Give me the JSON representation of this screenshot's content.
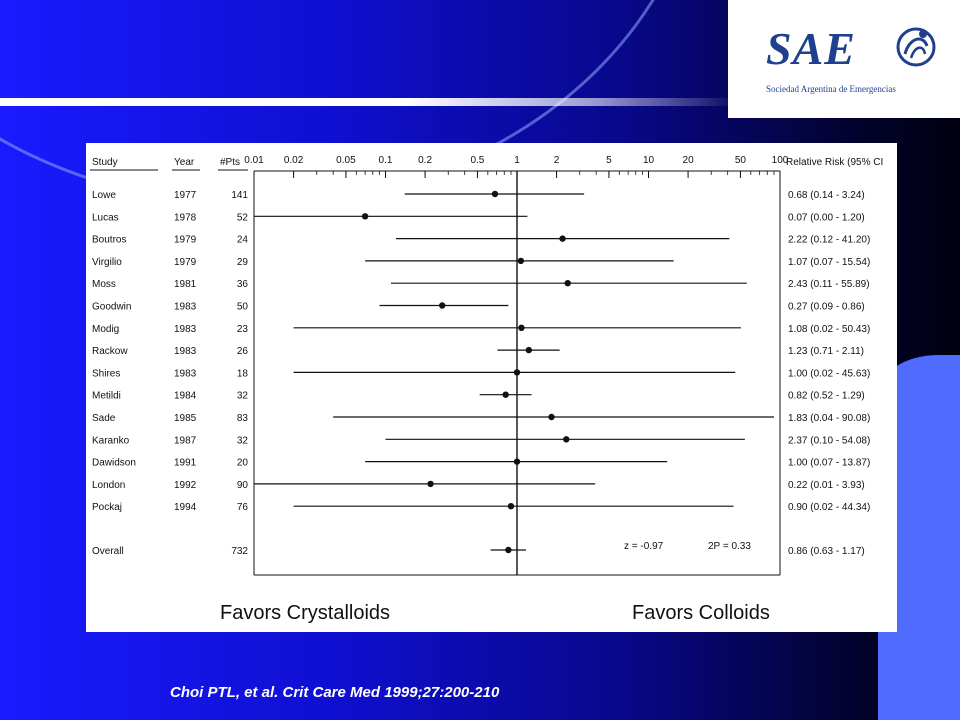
{
  "logo": {
    "text": "SAE",
    "subtitle": "Sociedad Argentina de Emergencias",
    "icon": "sae-swirl-logo"
  },
  "citation": "Choi PTL, et al. Crit Care Med 1999;27:200-210",
  "colors": {
    "slide_blue": "#1a1aff",
    "panel_blue": "#4f6cff",
    "logo_blue": "#1f3f8f"
  },
  "chart_data": {
    "type": "forest",
    "x_scale": "log",
    "xlim": [
      0.01,
      100
    ],
    "ticks": [
      "0.01",
      "0.02",
      "0.05",
      "0.1",
      "0.2",
      "0.5",
      "1",
      "2",
      "5",
      "10",
      "20",
      "50",
      "100"
    ],
    "reference_line": 1,
    "headers": {
      "study": "Study",
      "year": "Year",
      "pts": "#Pts",
      "rr": "Relative Risk (95% CI"
    },
    "studies": [
      {
        "study": "Lowe",
        "year": "1977",
        "pts": "141",
        "rr": 0.68,
        "lo": 0.14,
        "hi": 3.24,
        "label": "0.68 (0.14 - 3.24)"
      },
      {
        "study": "Lucas",
        "year": "1978",
        "pts": "52",
        "rr": 0.07,
        "lo": 0.0,
        "hi": 1.2,
        "label": "0.07 (0.00 - 1.20)"
      },
      {
        "study": "Boutros",
        "year": "1979",
        "pts": "24",
        "rr": 2.22,
        "lo": 0.12,
        "hi": 41.2,
        "label": "2.22 (0.12 - 41.20)"
      },
      {
        "study": "Virgilio",
        "year": "1979",
        "pts": "29",
        "rr": 1.07,
        "lo": 0.07,
        "hi": 15.54,
        "label": "1.07 (0.07 - 15.54)"
      },
      {
        "study": "Moss",
        "year": "1981",
        "pts": "36",
        "rr": 2.43,
        "lo": 0.11,
        "hi": 55.89,
        "label": "2.43 (0.11 - 55.89)"
      },
      {
        "study": "Goodwin",
        "year": "1983",
        "pts": "50",
        "rr": 0.27,
        "lo": 0.09,
        "hi": 0.86,
        "label": "0.27 (0.09 - 0.86)"
      },
      {
        "study": "Modig",
        "year": "1983",
        "pts": "23",
        "rr": 1.08,
        "lo": 0.02,
        "hi": 50.43,
        "label": "1.08 (0.02 - 50.43)"
      },
      {
        "study": "Rackow",
        "year": "1983",
        "pts": "26",
        "rr": 1.23,
        "lo": 0.71,
        "hi": 2.11,
        "label": "1.23 (0.71 - 2.11)"
      },
      {
        "study": "Shires",
        "year": "1983",
        "pts": "18",
        "rr": 1.0,
        "lo": 0.02,
        "hi": 45.63,
        "label": "1.00 (0.02 - 45.63)"
      },
      {
        "study": "Metildi",
        "year": "1984",
        "pts": "32",
        "rr": 0.82,
        "lo": 0.52,
        "hi": 1.29,
        "label": "0.82 (0.52 - 1.29)"
      },
      {
        "study": "Sade",
        "year": "1985",
        "pts": "83",
        "rr": 1.83,
        "lo": 0.04,
        "hi": 90.08,
        "label": "1.83 (0.04 - 90.08)"
      },
      {
        "study": "Karanko",
        "year": "1987",
        "pts": "32",
        "rr": 2.37,
        "lo": 0.1,
        "hi": 54.08,
        "label": "2.37 (0.10 - 54.08)"
      },
      {
        "study": "Dawidson",
        "year": "1991",
        "pts": "20",
        "rr": 1.0,
        "lo": 0.07,
        "hi": 13.87,
        "label": "1.00 (0.07 - 13.87)"
      },
      {
        "study": "London",
        "year": "1992",
        "pts": "90",
        "rr": 0.22,
        "lo": 0.01,
        "hi": 3.93,
        "label": "0.22 (0.01 - 3.93)"
      },
      {
        "study": "Pockaj",
        "year": "1994",
        "pts": "76",
        "rr": 0.9,
        "lo": 0.02,
        "hi": 44.34,
        "label": "0.90 (0.02 - 44.34)"
      }
    ],
    "overall": {
      "study": "Overall",
      "year": "",
      "pts": "732",
      "rr": 0.86,
      "lo": 0.63,
      "hi": 1.17,
      "label": "0.86 (0.63 - 1.17)"
    },
    "stats": {
      "z": "z = -0.97",
      "p": "2P = 0.33"
    },
    "favors_left": "Favors Crystalloids",
    "favors_right": "Favors Colloids"
  }
}
